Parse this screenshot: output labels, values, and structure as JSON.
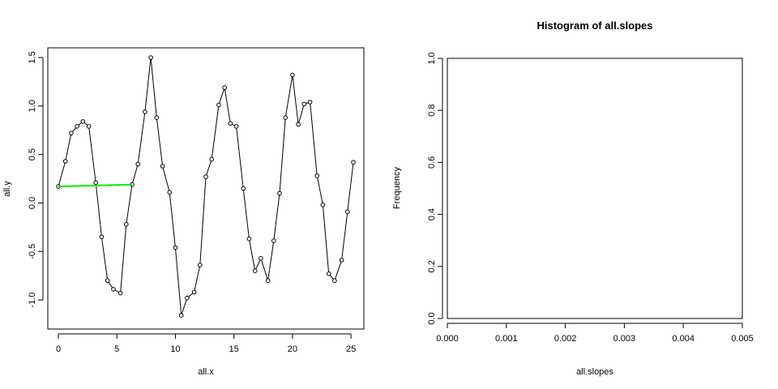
{
  "chart_data": [
    {
      "type": "line",
      "title": "",
      "xlabel": "all.x",
      "ylabel": "all.y",
      "xlim": [
        -0.9,
        26.1
      ],
      "ylim": [
        -1.3,
        1.6
      ],
      "xticks": [
        0,
        5,
        10,
        15,
        20,
        25
      ],
      "yticks": [
        -1.0,
        -0.5,
        0.0,
        0.5,
        1.0,
        1.5
      ],
      "xtick_labels": [
        "0",
        "5",
        "10",
        "15",
        "20",
        "25"
      ],
      "ytick_labels": [
        "-1.0",
        "-0.5",
        "0.0",
        "0.5",
        "1.0",
        "1.5"
      ],
      "grid": false,
      "series": [
        {
          "color": "#000000",
          "style": "line+points",
          "x": [
            0,
            0.6,
            1.1,
            1.6,
            2.1,
            2.6,
            3.2,
            3.7,
            4.2,
            4.7,
            5.3,
            5.8,
            6.3,
            6.8,
            7.4,
            7.9,
            8.4,
            8.9,
            9.5,
            10.0,
            10.5,
            11.0,
            11.6,
            12.1,
            12.6,
            13.1,
            13.7,
            14.2,
            14.7,
            15.2,
            15.8,
            16.3,
            16.8,
            17.3,
            17.9,
            18.4,
            18.9,
            19.4,
            20.0,
            20.5,
            21.0,
            21.5,
            22.1,
            22.6,
            23.1,
            23.6,
            24.2,
            24.7,
            25.2
          ],
          "y": [
            0.17,
            0.43,
            0.72,
            0.79,
            0.84,
            0.79,
            0.21,
            -0.35,
            -0.8,
            -0.89,
            -0.93,
            -0.22,
            0.19,
            0.4,
            0.94,
            1.5,
            0.88,
            0.38,
            0.11,
            -0.46,
            -1.16,
            -0.98,
            -0.92,
            -0.64,
            0.27,
            0.45,
            1.01,
            1.19,
            0.82,
            0.79,
            0.15,
            -0.37,
            -0.7,
            -0.57,
            -0.8,
            -0.39,
            0.1,
            0.88,
            1.32,
            0.81,
            1.02,
            1.04,
            0.28,
            -0.02,
            -0.73,
            -0.8,
            -0.59,
            -0.09,
            0.42
          ]
        },
        {
          "color": "#00ee00",
          "style": "line",
          "x": [
            0,
            6.3
          ],
          "y": [
            0.17,
            0.19
          ]
        }
      ]
    },
    {
      "type": "bar",
      "title": "Histogram of all.slopes",
      "xlabel": "all.slopes",
      "ylabel": "Frequency",
      "xlim": [
        0.0,
        0.005
      ],
      "ylim": [
        0.0,
        1.0
      ],
      "xticks": [
        0.0,
        0.001,
        0.002,
        0.003,
        0.004,
        0.005
      ],
      "yticks": [
        0.0,
        0.2,
        0.4,
        0.6,
        0.8,
        1.0
      ],
      "xtick_labels": [
        "0.000",
        "0.001",
        "0.002",
        "0.003",
        "0.004",
        "0.005"
      ],
      "ytick_labels": [
        "0.0",
        "0.2",
        "0.4",
        "0.6",
        "0.8",
        "1.0"
      ],
      "grid": false,
      "categories": [],
      "values": []
    }
  ]
}
